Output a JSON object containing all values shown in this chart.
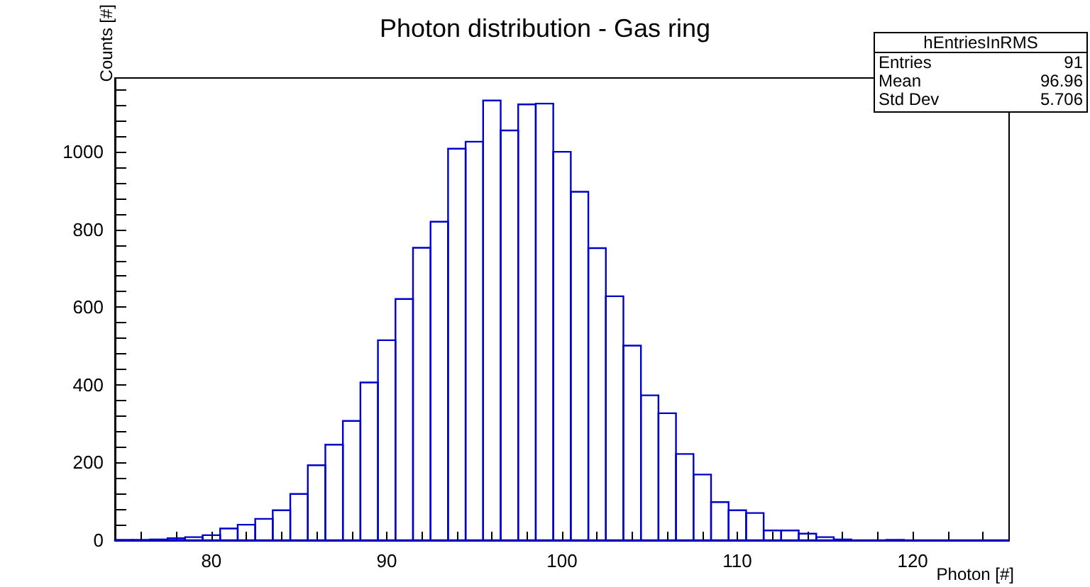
{
  "chart_data": {
    "type": "histogram",
    "title": "Photon distribution - Gas ring",
    "xlabel": "Photon [#]",
    "ylabel": "Counts [#]",
    "bins": [
      74.5,
      75.5,
      76.5,
      77.5,
      78.5,
      79.5,
      80.5,
      81.5,
      82.5,
      83.5,
      84.5,
      85.5,
      86.5,
      87.5,
      88.5,
      89.5,
      90.5,
      91.5,
      92.5,
      93.5,
      94.5,
      95.5,
      96.5,
      97.5,
      98.5,
      99.5,
      100.5,
      101.5,
      102.5,
      103.5,
      104.5,
      105.5,
      106.5,
      107.5,
      108.5,
      109.5,
      110.5,
      111.5,
      112.5,
      113.5,
      114.5,
      115.5,
      116.5,
      117.5,
      118.5,
      119.5,
      120.5,
      121.5,
      122.5,
      123.5,
      124.5,
      125.5
    ],
    "values": [
      1,
      1,
      2,
      5,
      8,
      13,
      30,
      40,
      55,
      77,
      119,
      193,
      246,
      307,
      406,
      515,
      621,
      753,
      820,
      1008,
      1026,
      1132,
      1055,
      1122,
      1124,
      1000,
      897,
      752,
      628,
      501,
      373,
      327,
      222,
      169,
      98,
      77,
      70,
      25,
      25,
      17,
      8,
      2,
      0,
      0,
      1,
      0,
      0,
      0,
      0,
      0,
      0
    ],
    "color": "#0000cc",
    "xlim": [
      74.5,
      125.5
    ],
    "xticks": [
      {
        "value": 76,
        "label": null
      },
      {
        "value": 78,
        "label": null
      },
      80,
      {
        "value": 82,
        "label": null
      },
      {
        "value": 84,
        "label": null
      },
      {
        "value": 86,
        "label": null
      },
      {
        "value": 88,
        "label": null
      },
      90,
      {
        "value": 92,
        "label": null
      },
      {
        "value": 94,
        "label": null
      },
      {
        "value": 96,
        "label": null
      },
      {
        "value": 98,
        "label": null
      },
      100,
      {
        "value": 102,
        "label": null
      },
      {
        "value": 104,
        "label": null
      },
      {
        "value": 106,
        "label": null
      },
      {
        "value": 108,
        "label": null
      },
      110,
      {
        "value": 112,
        "label": null
      },
      {
        "value": 114,
        "label": null
      },
      {
        "value": 116,
        "label": null
      },
      {
        "value": 118,
        "label": null
      },
      120,
      {
        "value": 122,
        "label": null
      },
      {
        "value": 124,
        "label": null
      }
    ],
    "ylim": [
      0,
      1190
    ],
    "yticks": [
      0,
      {
        "value": 40,
        "label": null
      },
      {
        "value": 80,
        "label": null
      },
      {
        "value": 120,
        "label": null
      },
      {
        "value": 160,
        "label": null
      },
      200,
      {
        "value": 240,
        "label": null
      },
      {
        "value": 280,
        "label": null
      },
      {
        "value": 320,
        "label": null
      },
      {
        "value": 360,
        "label": null
      },
      400,
      {
        "value": 440,
        "label": null
      },
      {
        "value": 480,
        "label": null
      },
      {
        "value": 520,
        "label": null
      },
      {
        "value": 560,
        "label": null
      },
      600,
      {
        "value": 640,
        "label": null
      },
      {
        "value": 680,
        "label": null
      },
      {
        "value": 720,
        "label": null
      },
      {
        "value": 760,
        "label": null
      },
      800,
      {
        "value": 840,
        "label": null
      },
      {
        "value": 880,
        "label": null
      },
      {
        "value": 920,
        "label": null
      },
      {
        "value": 960,
        "label": null
      },
      1000,
      {
        "value": 1040,
        "label": null
      },
      {
        "value": 1080,
        "label": null
      },
      {
        "value": 1120,
        "label": null
      },
      {
        "value": 1160,
        "label": null
      }
    ],
    "annotations": [
      "hEntriesInRMS",
      "Entries 91",
      "Mean 96.96",
      "Std Dev 5.706"
    ],
    "grid": false
  }
}
